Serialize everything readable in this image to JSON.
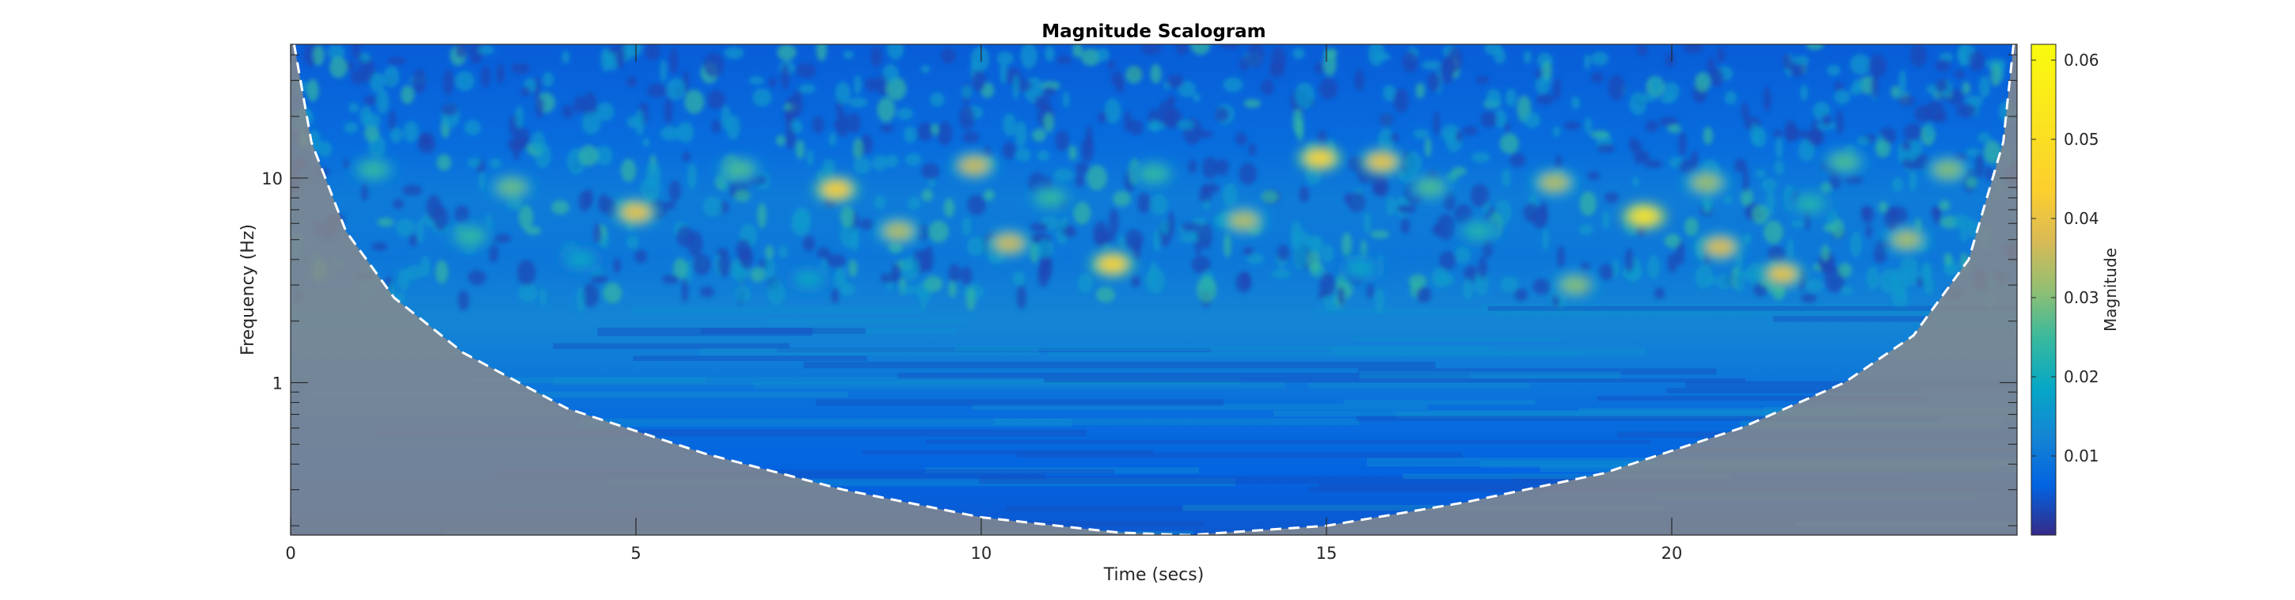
{
  "chart_data": {
    "type": "heatmap",
    "title": "Magnitude Scalogram",
    "xlabel": "Time (secs)",
    "ylabel": "Frequency (Hz)",
    "xlim": [
      0,
      25
    ],
    "ylim": [
      0.18,
      45
    ],
    "yscale": "log",
    "x_ticks": [
      "0",
      "5",
      "10",
      "15",
      "20"
    ],
    "y_ticks": [
      "1",
      "10"
    ],
    "colormap": "parula",
    "colorbar": {
      "label": "Magnitude",
      "range": [
        0,
        0.062
      ],
      "ticks": [
        "0.01",
        "0.02",
        "0.03",
        "0.04",
        "0.05",
        "0.06"
      ]
    },
    "cone_of_influence": {
      "style": "dashed white",
      "shaded": true,
      "points": [
        [
          0.05,
          45
        ],
        [
          0.3,
          15
        ],
        [
          0.8,
          5.5
        ],
        [
          1.5,
          2.6
        ],
        [
          2.5,
          1.4
        ],
        [
          4,
          0.75
        ],
        [
          6,
          0.45
        ],
        [
          8,
          0.3
        ],
        [
          10,
          0.22
        ],
        [
          12,
          0.185
        ],
        [
          13,
          0.18
        ],
        [
          15,
          0.2
        ],
        [
          17,
          0.26
        ],
        [
          19,
          0.36
        ],
        [
          21,
          0.6
        ],
        [
          22.5,
          1.0
        ],
        [
          23.5,
          1.7
        ],
        [
          24.3,
          4.0
        ],
        [
          24.8,
          15
        ],
        [
          24.95,
          45
        ]
      ]
    },
    "hotspots": [
      {
        "t": 19.6,
        "f": 6.5,
        "magnitude": 0.052
      },
      {
        "t": 11.9,
        "f": 3.8,
        "magnitude": 0.045
      },
      {
        "t": 7.9,
        "f": 8.8,
        "magnitude": 0.044
      },
      {
        "t": 14.9,
        "f": 12.5,
        "magnitude": 0.046
      },
      {
        "t": 5.0,
        "f": 6.8,
        "magnitude": 0.04
      },
      {
        "t": 21.6,
        "f": 3.4,
        "magnitude": 0.04
      },
      {
        "t": 20.7,
        "f": 4.6,
        "magnitude": 0.038
      },
      {
        "t": 15.8,
        "f": 12.0,
        "magnitude": 0.04
      },
      {
        "t": 10.4,
        "f": 4.8,
        "magnitude": 0.036
      },
      {
        "t": 9.9,
        "f": 11.5,
        "magnitude": 0.036
      },
      {
        "t": 13.8,
        "f": 6.2,
        "magnitude": 0.034
      },
      {
        "t": 18.3,
        "f": 9.5,
        "magnitude": 0.034
      },
      {
        "t": 8.8,
        "f": 5.5,
        "magnitude": 0.034
      },
      {
        "t": 23.4,
        "f": 5.0,
        "magnitude": 0.033
      },
      {
        "t": 20.5,
        "f": 9.5,
        "magnitude": 0.032
      },
      {
        "t": 18.6,
        "f": 3.0,
        "magnitude": 0.03
      },
      {
        "t": 3.2,
        "f": 9.0,
        "magnitude": 0.028
      },
      {
        "t": 16.5,
        "f": 9.0,
        "magnitude": 0.026
      },
      {
        "t": 2.6,
        "f": 5.2,
        "magnitude": 0.024
      },
      {
        "t": 6.5,
        "f": 11.0,
        "magnitude": 0.026
      },
      {
        "t": 11.0,
        "f": 8.0,
        "magnitude": 0.024
      },
      {
        "t": 22.5,
        "f": 12.0,
        "magnitude": 0.026
      },
      {
        "t": 24.0,
        "f": 11.0,
        "magnitude": 0.03
      },
      {
        "t": 12.5,
        "f": 10.5,
        "magnitude": 0.024
      },
      {
        "t": 1.2,
        "f": 11.0,
        "magnitude": 0.024
      },
      {
        "t": 17.2,
        "f": 5.5,
        "magnitude": 0.022
      },
      {
        "t": 4.2,
        "f": 4.0,
        "magnitude": 0.018
      },
      {
        "t": 7.5,
        "f": 3.2,
        "magnitude": 0.018
      },
      {
        "t": 15.5,
        "f": 3.6,
        "magnitude": 0.018
      },
      {
        "t": 22.0,
        "f": 7.5,
        "magnitude": 0.022
      }
    ]
  }
}
